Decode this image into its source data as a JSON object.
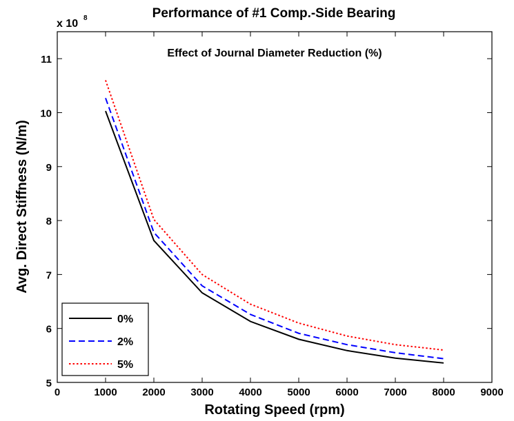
{
  "chart_data": {
    "type": "line",
    "title": "Performance of #1 Comp.-Side Bearing",
    "subtitle": "Effect of Journal Diameter Reduction (%)",
    "xlabel": "Rotating Speed (rpm)",
    "ylabel": "Avg. Direct Stiffness (N/m)",
    "y_multiplier_label": "x 10",
    "y_multiplier_exponent": "8",
    "xlim": [
      0,
      9000
    ],
    "ylim": [
      5,
      11.5
    ],
    "x_ticks": [
      0,
      1000,
      2000,
      3000,
      4000,
      5000,
      6000,
      7000,
      8000,
      9000
    ],
    "y_ticks": [
      5,
      6,
      7,
      8,
      9,
      10,
      11
    ],
    "grid": false,
    "legend_position": "bottom-left",
    "x": [
      1000,
      2000,
      3000,
      4000,
      5000,
      6000,
      7000,
      8000
    ],
    "series": [
      {
        "name": "0%",
        "color": "#000000",
        "dash": "solid",
        "values": [
          10.03,
          7.63,
          6.66,
          6.13,
          5.8,
          5.59,
          5.45,
          5.36
        ]
      },
      {
        "name": "2%",
        "color": "#0000ff",
        "dash": "dashed",
        "values": [
          10.27,
          7.78,
          6.79,
          6.26,
          5.91,
          5.7,
          5.55,
          5.44
        ]
      },
      {
        "name": "5%",
        "color": "#ff0000",
        "dash": "dotted",
        "values": [
          10.6,
          8.02,
          7.0,
          6.45,
          6.1,
          5.86,
          5.7,
          5.6
        ]
      }
    ]
  }
}
